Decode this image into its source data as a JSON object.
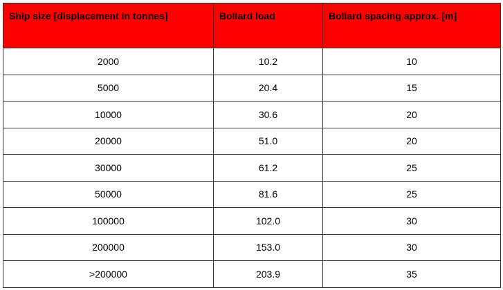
{
  "table": {
    "header": [
      "Ship size [displacement in tonnes]",
      "Bollard load",
      "Bollard spacing approx. [m]"
    ],
    "rows": [
      [
        "2000",
        "10.2",
        "10"
      ],
      [
        "5000",
        "20.4",
        "15"
      ],
      [
        "10000",
        "30.6",
        "20"
      ],
      [
        "20000",
        "51.0",
        "20"
      ],
      [
        "30000",
        "61.2",
        "25"
      ],
      [
        "50000",
        "81.6",
        "25"
      ],
      [
        "100000",
        "102.0",
        "30"
      ],
      [
        "200000",
        "153.0",
        "30"
      ],
      [
        ">200000",
        "203.9",
        "35"
      ]
    ]
  }
}
